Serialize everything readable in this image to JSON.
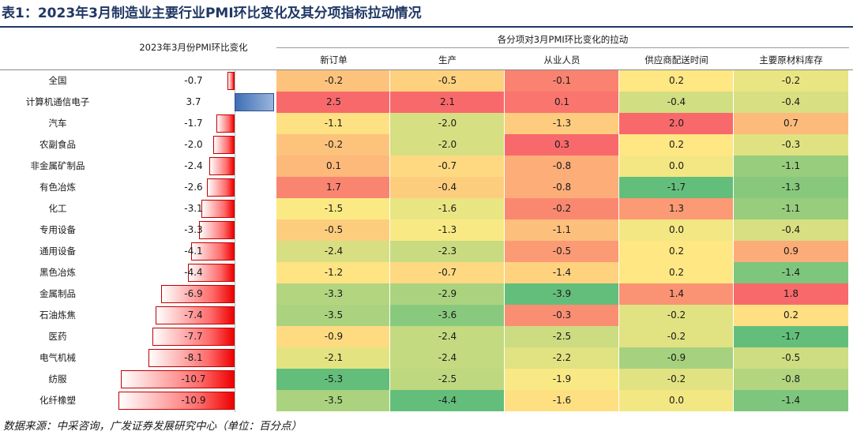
{
  "title": "表1：2023年3月制造业主要行业PMI环比变化及其分项指标拉动情况",
  "source": "数据来源：中采咨询，广发证券发展研究中心（单位：百分点）",
  "chart_data": {
    "type": "table",
    "left_header": "2023年3月份PMI环比变化",
    "right_header": "各分项对3月PMI环比变化的拉动",
    "columns": [
      "新订单",
      "生产",
      "从业人员",
      "供应商配送时间",
      "主要原材料库存"
    ],
    "rows": [
      {
        "label": "全国",
        "pmi_change": -0.7,
        "values": [
          -0.2,
          -0.5,
          -0.1,
          0.2,
          -0.2
        ]
      },
      {
        "label": "计算机通信电子",
        "pmi_change": 3.7,
        "values": [
          2.5,
          2.1,
          0.1,
          -0.4,
          -0.4
        ]
      },
      {
        "label": "汽车",
        "pmi_change": -1.7,
        "values": [
          -1.1,
          -2.0,
          -1.3,
          2.0,
          0.7
        ]
      },
      {
        "label": "农副食品",
        "pmi_change": -2.0,
        "values": [
          -0.2,
          -2.0,
          0.3,
          0.2,
          -0.3
        ]
      },
      {
        "label": "非金属矿制品",
        "pmi_change": -2.4,
        "values": [
          0.1,
          -0.7,
          -0.8,
          0.0,
          -1.1
        ]
      },
      {
        "label": "有色冶炼",
        "pmi_change": -2.6,
        "values": [
          1.7,
          -0.4,
          -0.8,
          -1.7,
          -1.3
        ]
      },
      {
        "label": "化工",
        "pmi_change": -3.1,
        "values": [
          -1.5,
          -1.6,
          -0.2,
          1.3,
          -1.1
        ]
      },
      {
        "label": "专用设备",
        "pmi_change": -3.3,
        "values": [
          -0.5,
          -1.3,
          -1.1,
          0.0,
          -0.4
        ]
      },
      {
        "label": "通用设备",
        "pmi_change": -4.1,
        "values": [
          -2.4,
          -2.3,
          -0.5,
          0.2,
          0.9
        ]
      },
      {
        "label": "黑色冶炼",
        "pmi_change": -4.4,
        "values": [
          -1.2,
          -0.7,
          -1.4,
          0.2,
          -1.4
        ]
      },
      {
        "label": "金属制品",
        "pmi_change": -6.9,
        "values": [
          -3.3,
          -2.9,
          -3.9,
          1.4,
          1.8
        ]
      },
      {
        "label": "石油炼焦",
        "pmi_change": -7.4,
        "values": [
          -3.5,
          -3.6,
          -0.3,
          -0.2,
          0.2
        ]
      },
      {
        "label": "医药",
        "pmi_change": -7.7,
        "values": [
          -0.9,
          -2.4,
          -2.5,
          -0.2,
          -1.7
        ]
      },
      {
        "label": "电气机械",
        "pmi_change": -8.1,
        "values": [
          -2.1,
          -2.4,
          -2.2,
          -0.9,
          -0.5
        ]
      },
      {
        "label": "纺服",
        "pmi_change": -10.7,
        "values": [
          -5.3,
          -2.5,
          -1.9,
          -0.2,
          -0.8
        ]
      },
      {
        "label": "化纤橡塑",
        "pmi_change": -10.9,
        "values": [
          -3.5,
          -4.4,
          -1.6,
          0.0,
          -1.4
        ]
      }
    ],
    "color_scale": {
      "low": "#63be7b",
      "mid": "#ffeb84",
      "high": "#f8696b"
    },
    "bar_colors": {
      "negative": "#ee0000",
      "positive": "#3e6fb5"
    }
  }
}
